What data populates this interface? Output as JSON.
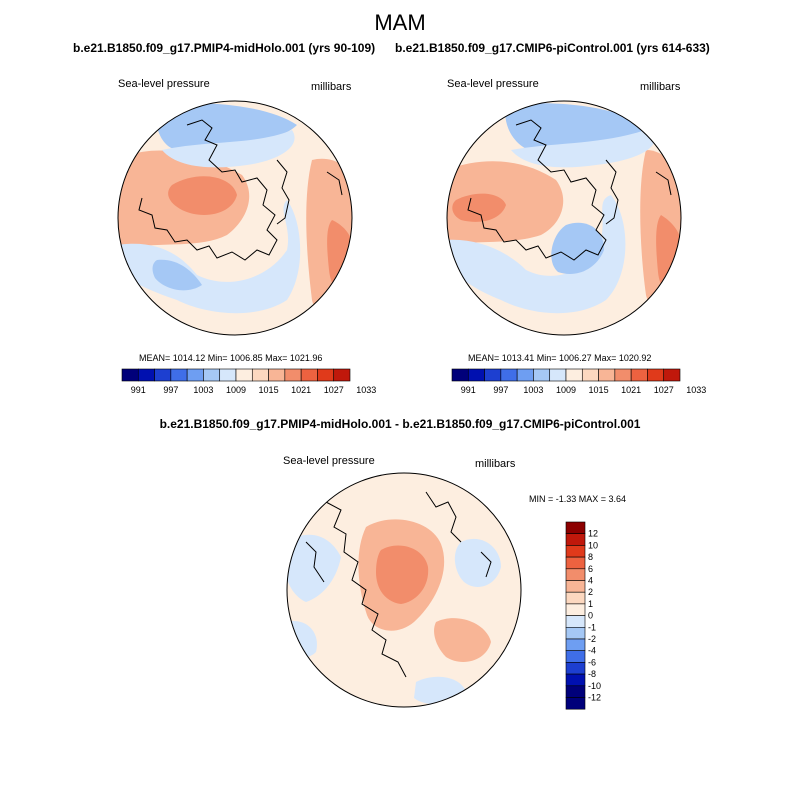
{
  "figure": {
    "season": "MAM",
    "variable": "Sea-level pressure",
    "units": "millibars",
    "colors": {
      "blue_900": "#00007a",
      "blue_800": "#0010b0",
      "blue_700": "#1d3fd0",
      "blue_600": "#3f6ee8",
      "blue_500": "#6e9ef2",
      "blue_300": "#a5c8f5",
      "blue_100": "#d6e7fb",
      "neutral": "#fdeee0",
      "red_100": "#fcd8c0",
      "red_300": "#f8b596",
      "red_500": "#f28d6b",
      "red_600": "#ed6240",
      "red_700": "#e03a1b",
      "red_800": "#c0180b",
      "red_900": "#8c0000"
    }
  },
  "panels": [
    {
      "title": "b.e21.B1850.f09_g17.PMIP4-midHolo.001 (yrs 90-109)",
      "variable": "Sea-level pressure",
      "units": "millibars",
      "stats": "MEAN= 1014.12  Min= 1006.85  Max= 1021.96"
    },
    {
      "title": "b.e21.B1850.f09_g17.CMIP6-piControl.001 (yrs 614-633)",
      "variable": "Sea-level pressure",
      "units": "millibars",
      "stats": "MEAN= 1013.41  Min= 1006.27  Max= 1020.92"
    }
  ],
  "difference": {
    "title": "b.e21.B1850.f09_g17.PMIP4-midHolo.001 - b.e21.B1850.f09_g17.CMIP6-piControl.001",
    "variable": "Sea-level pressure",
    "units": "millibars",
    "stats": "MIN =  -1.33 MAX =   3.64"
  },
  "chart_data": [
    {
      "type": "heatmap",
      "projection": "north-polar-stereographic",
      "title": "b.e21.B1850.f09_g17.PMIP4-midHolo.001 (yrs 90-109)",
      "field": "Sea-level pressure",
      "units": "millibars",
      "mean": 1014.12,
      "min": 1006.85,
      "max": 1021.96,
      "colorbar_ticks": [
        "991",
        "997",
        "1003",
        "1009",
        "1015",
        "1021",
        "1027",
        "1033"
      ],
      "colorbar_levels": [
        991,
        994,
        997,
        1000,
        1003,
        1006,
        1009,
        1012,
        1015,
        1018,
        1021,
        1024,
        1027,
        1030,
        1033
      ]
    },
    {
      "type": "heatmap",
      "projection": "north-polar-stereographic",
      "title": "b.e21.B1850.f09_g17.CMIP6-piControl.001 (yrs 614-633)",
      "field": "Sea-level pressure",
      "units": "millibars",
      "mean": 1013.41,
      "min": 1006.27,
      "max": 1020.92,
      "colorbar_ticks": [
        "991",
        "997",
        "1003",
        "1009",
        "1015",
        "1021",
        "1027",
        "1033"
      ],
      "colorbar_levels": [
        991,
        994,
        997,
        1000,
        1003,
        1006,
        1009,
        1012,
        1015,
        1018,
        1021,
        1024,
        1027,
        1030,
        1033
      ]
    },
    {
      "type": "heatmap",
      "projection": "north-polar-stereographic",
      "title": "b.e21.B1850.f09_g17.PMIP4-midHolo.001 - b.e21.B1850.f09_g17.CMIP6-piControl.001",
      "field": "Sea-level pressure difference",
      "units": "millibars",
      "min": -1.33,
      "max": 3.64,
      "colorbar_ticks": [
        "12",
        "10",
        "8",
        "6",
        "4",
        "2",
        "1",
        "0",
        "-1",
        "-2",
        "-4",
        "-6",
        "-8",
        "-10",
        "-12"
      ],
      "colorbar_levels": [
        12,
        10,
        8,
        6,
        4,
        2,
        1,
        0,
        -1,
        -2,
        -4,
        -6,
        -8,
        -10,
        -12
      ]
    }
  ]
}
